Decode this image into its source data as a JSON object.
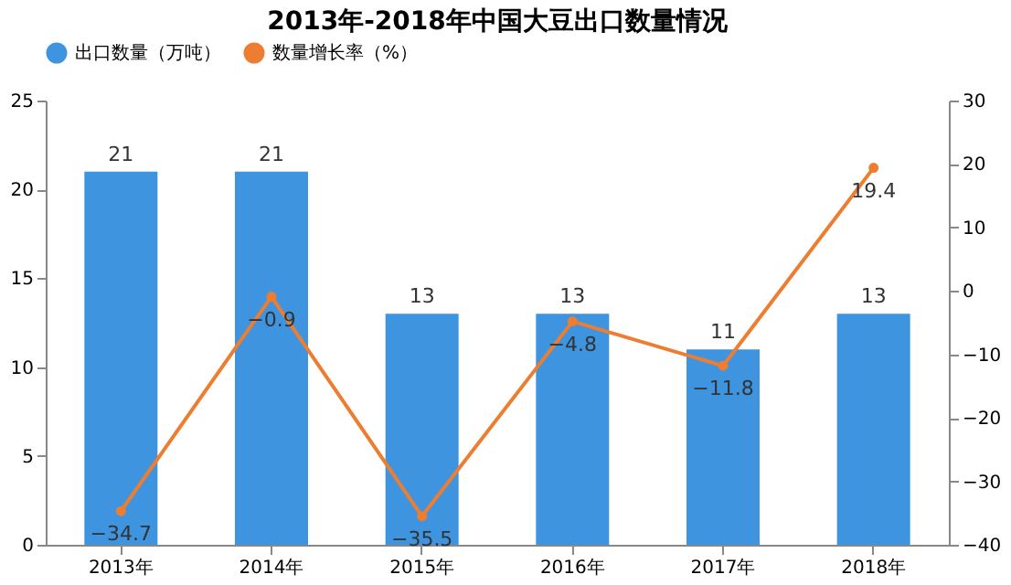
{
  "chart_data": {
    "type": "bar",
    "title": "2013年-2018年中国大豆出口数量情况",
    "categories": [
      "2013年",
      "2014年",
      "2015年",
      "2016年",
      "2017年",
      "2018年"
    ],
    "series": [
      {
        "name": "出口数量（万吨）",
        "color": "#3f94e0",
        "values": [
          21,
          21,
          13,
          13,
          11,
          13
        ]
      },
      {
        "name": "数量增长率（%）",
        "type": "line",
        "axis": "y2",
        "color": "#ed7d31",
        "marker": "circle",
        "line_style": "solid",
        "values": [
          -34.7,
          -0.9,
          -35.5,
          -4.8,
          -11.8,
          19.4
        ]
      }
    ],
    "ylim": [
      0,
      25
    ],
    "yticks": [
      0,
      5,
      10,
      15,
      20,
      25
    ],
    "y2lim": [
      -40,
      30
    ],
    "y2ticks": [
      -40,
      -30,
      -20,
      -10,
      0,
      10,
      20,
      30
    ],
    "data_labels": true,
    "grid": false,
    "legend": "top"
  }
}
